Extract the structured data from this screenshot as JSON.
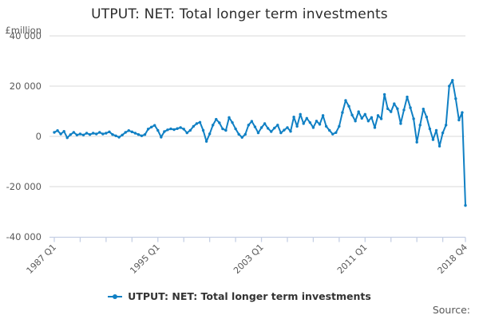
{
  "title": "UTPUT: NET: Total longer term investments",
  "y_axis_unit_label": "£million",
  "legend": {
    "label": "UTPUT: NET: Total longer term investments"
  },
  "source_label": "Source:",
  "colors": {
    "line": "#1080c4",
    "grid": "#d9d9d9",
    "axis": "#c5cfe4",
    "tick_text": "#595959",
    "title_text": "#2b2b2b",
    "legend_text": "#333333"
  },
  "chart_data": {
    "type": "line",
    "title": "UTPUT: NET: Total longer term investments",
    "xlabel": "",
    "ylabel": "£million",
    "ylim": [
      -40000,
      40000
    ],
    "grid": true,
    "legend_position": "bottom",
    "frequency": "quarterly",
    "x_start": "1987 Q1",
    "x_end": "2018 Q4",
    "y_ticks": [
      40000,
      20000,
      0,
      -20000,
      -40000
    ],
    "y_tick_labels": [
      "40 000",
      "20 000",
      "0",
      "-20 000",
      "-40 000"
    ],
    "x_tick_labels": [
      {
        "index": 0,
        "label": "1987 Q1"
      },
      {
        "index": 32,
        "label": "1995 Q1"
      },
      {
        "index": 64,
        "label": "2003 Q1"
      },
      {
        "index": 96,
        "label": "2011 Q1"
      },
      {
        "index": 127,
        "label": "2018 Q4"
      }
    ],
    "minor_tick_every_quarters": 8,
    "series": [
      {
        "name": "UTPUT: NET: Total longer term investments",
        "values": [
          1600,
          2300,
          950,
          2000,
          -550,
          700,
          1600,
          550,
          950,
          550,
          1270,
          730,
          1270,
          950,
          1600,
          950,
          1270,
          1800,
          730,
          220,
          -320,
          540,
          1600,
          2300,
          1800,
          1270,
          730,
          220,
          730,
          2900,
          3700,
          4400,
          2400,
          -300,
          1900,
          2600,
          3000,
          2700,
          3100,
          3500,
          2900,
          1400,
          2400,
          4000,
          5100,
          5600,
          2400,
          -2000,
          1000,
          4500,
          6800,
          5400,
          3000,
          2400,
          7500,
          5500,
          3000,
          850,
          -400,
          800,
          4500,
          6000,
          3800,
          1400,
          3500,
          5100,
          3200,
          1900,
          3300,
          4500,
          1400,
          2500,
          3500,
          2000,
          7700,
          4000,
          8800,
          5100,
          7200,
          5500,
          3500,
          6100,
          4800,
          8300,
          4000,
          2400,
          900,
          1500,
          4000,
          9500,
          14300,
          12000,
          8500,
          6100,
          9800,
          7200,
          8800,
          6100,
          7500,
          3500,
          8300,
          7000,
          16700,
          11000,
          9800,
          13000,
          11000,
          5100,
          10500,
          15700,
          11400,
          7000,
          -2300,
          4500,
          10900,
          7700,
          3000,
          -1300,
          2400,
          -3900,
          1400,
          4500,
          20000,
          22300,
          15000,
          6500,
          9500,
          -27500
        ]
      }
    ]
  }
}
